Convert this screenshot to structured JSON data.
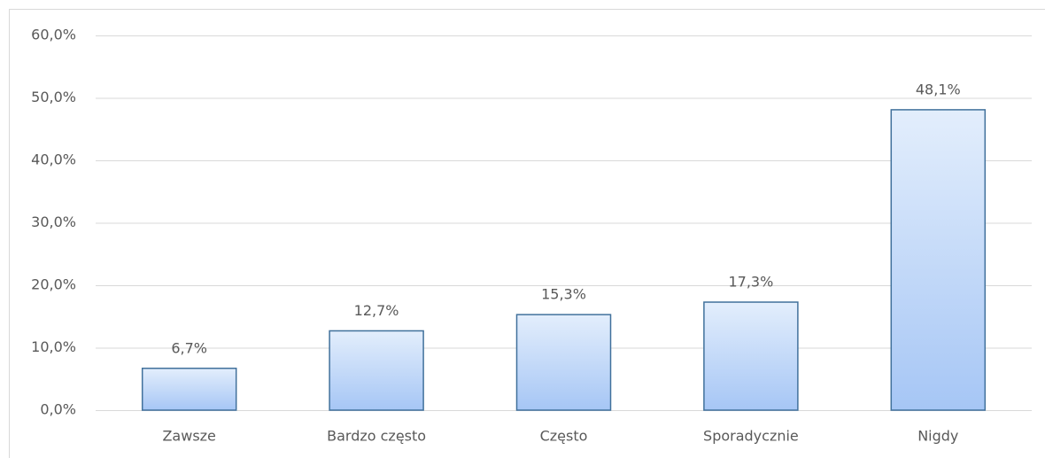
{
  "chart_data": {
    "type": "bar",
    "categories": [
      "Zawsze",
      "Bardzo często",
      "Często",
      "Sporadycznie",
      "Nigdy"
    ],
    "values": [
      6.7,
      12.7,
      15.3,
      17.3,
      48.1
    ],
    "value_labels": [
      "6,7%",
      "12,7%",
      "15,3%",
      "17,3%",
      "48,1%"
    ],
    "color": "#a6c6f5",
    "ylim": [
      0,
      60
    ],
    "yticks": [
      {
        "value": 0,
        "label": "0,0%"
      },
      {
        "value": 10,
        "label": "10,0%"
      },
      {
        "value": 20,
        "label": "20,0%"
      },
      {
        "value": 30,
        "label": "30,0%"
      },
      {
        "value": 40,
        "label": "40,0%"
      },
      {
        "value": 50,
        "label": "50,0%"
      },
      {
        "value": 60,
        "label": "60,0%"
      }
    ],
    "grid": true
  }
}
